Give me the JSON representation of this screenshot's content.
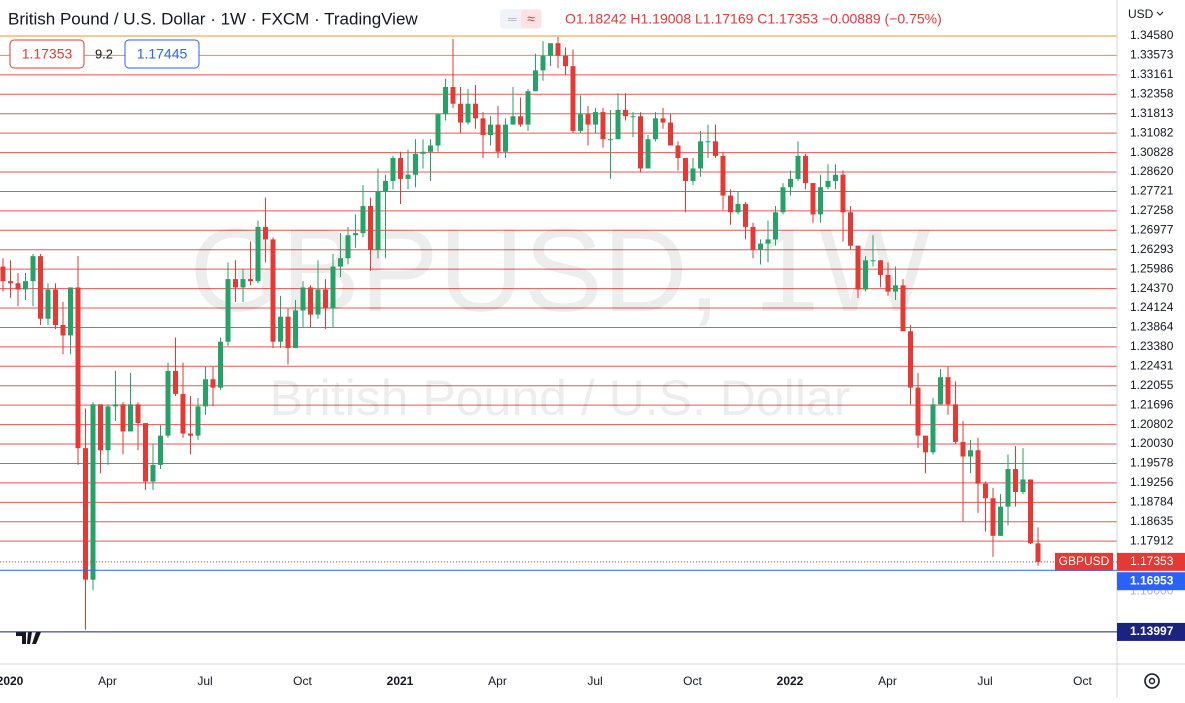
{
  "chart_data": {
    "type": "candlestick",
    "title": "British Pound / U.S. Dollar · 1W · FXCM · TradingView",
    "ohlc_legend": "O1.18242 H1.19008 L1.17169 C1.17353 −0.00889 (−0.75%)",
    "bid": "1.17353",
    "spread": "9.2",
    "ask": "1.17445",
    "currency": "USD",
    "watermark": {
      "symbol": "GBPUSD, 1W",
      "description": "British Pound / U.S. Dollar"
    },
    "symbol_tag": "GBPUSD",
    "up_color": "#26a269",
    "down_color": "#e53935",
    "ylim": [
      1.1246,
      1.4427
    ],
    "current_price": 1.17353,
    "marked_levels": [
      1.16953,
      1.13997
    ],
    "axis_faint_label": "1.16000",
    "level_labels": [
      "1.34580",
      "1.33573",
      "1.33161",
      "1.32358",
      "1.31813",
      "1.31082",
      "1.30828",
      "1.28620",
      "1.27721",
      "1.27258",
      "1.26977",
      "1.26293",
      "1.25986",
      "1.24370",
      "1.24124",
      "1.23864",
      "1.23380",
      "1.22431",
      "1.22055",
      "1.21696",
      "1.20802",
      "1.20030",
      "1.19578",
      "1.19256",
      "1.18784",
      "1.18635",
      "1.17912"
    ],
    "x_labels": [
      "2020",
      "Apr",
      "Jul",
      "Oct",
      "2021",
      "Apr",
      "Jul",
      "Oct",
      "2022",
      "Apr",
      "Jul",
      "Oct"
    ],
    "candles": [
      [
        1.315,
        1.319,
        1.303,
        1.308
      ],
      [
        1.308,
        1.318,
        1.3,
        1.307
      ],
      [
        1.307,
        1.312,
        1.296,
        1.304
      ],
      [
        1.304,
        1.312,
        1.299,
        1.308
      ],
      [
        1.308,
        1.321,
        1.296,
        1.32
      ],
      [
        1.32,
        1.321,
        1.287,
        1.29
      ],
      [
        1.29,
        1.307,
        1.287,
        1.304
      ],
      [
        1.304,
        1.307,
        1.285,
        1.287
      ],
      [
        1.287,
        1.298,
        1.273,
        1.282
      ],
      [
        1.282,
        1.305,
        1.273,
        1.305
      ],
      [
        1.305,
        1.32,
        1.22,
        1.228
      ],
      [
        1.228,
        1.247,
        1.141,
        1.165
      ],
      [
        1.165,
        1.25,
        1.16,
        1.249
      ],
      [
        1.249,
        1.249,
        1.216,
        1.227
      ],
      [
        1.227,
        1.249,
        1.22,
        1.248
      ],
      [
        1.248,
        1.265,
        1.241,
        1.249
      ],
      [
        1.249,
        1.25,
        1.225,
        1.236
      ],
      [
        1.236,
        1.264,
        1.236,
        1.249
      ],
      [
        1.249,
        1.25,
        1.227,
        1.24
      ],
      [
        1.24,
        1.24,
        1.208,
        1.212
      ],
      [
        1.212,
        1.23,
        1.208,
        1.22
      ],
      [
        1.22,
        1.239,
        1.218,
        1.234
      ],
      [
        1.234,
        1.269,
        1.233,
        1.265
      ],
      [
        1.265,
        1.281,
        1.253,
        1.254
      ],
      [
        1.254,
        1.269,
        1.233,
        1.235
      ],
      [
        1.235,
        1.253,
        1.225,
        1.234
      ],
      [
        1.234,
        1.252,
        1.232,
        1.248
      ],
      [
        1.248,
        1.267,
        1.244,
        1.261
      ],
      [
        1.261,
        1.267,
        1.248,
        1.257
      ],
      [
        1.257,
        1.281,
        1.256,
        1.279
      ],
      [
        1.279,
        1.317,
        1.277,
        1.309
      ],
      [
        1.309,
        1.318,
        1.298,
        1.305
      ],
      [
        1.305,
        1.314,
        1.298,
        1.309
      ],
      [
        1.309,
        1.327,
        1.306,
        1.308
      ],
      [
        1.308,
        1.337,
        1.307,
        1.334
      ],
      [
        1.334,
        1.348,
        1.317,
        1.328
      ],
      [
        1.328,
        1.329,
        1.276,
        1.279
      ],
      [
        1.279,
        1.301,
        1.276,
        1.291
      ],
      [
        1.291,
        1.295,
        1.268,
        1.276
      ],
      [
        1.276,
        1.299,
        1.277,
        1.294
      ],
      [
        1.294,
        1.308,
        1.286,
        1.305
      ],
      [
        1.305,
        1.306,
        1.286,
        1.292
      ],
      [
        1.292,
        1.318,
        1.29,
        1.304
      ],
      [
        1.304,
        1.309,
        1.285,
        1.295
      ],
      [
        1.295,
        1.321,
        1.286,
        1.315
      ],
      [
        1.315,
        1.331,
        1.31,
        1.319
      ],
      [
        1.319,
        1.334,
        1.316,
        1.33
      ],
      [
        1.33,
        1.34,
        1.324,
        1.331
      ],
      [
        1.331,
        1.354,
        1.329,
        1.344
      ],
      [
        1.344,
        1.348,
        1.313,
        1.323
      ],
      [
        1.323,
        1.362,
        1.319,
        1.351
      ],
      [
        1.351,
        1.359,
        1.319,
        1.356
      ],
      [
        1.356,
        1.368,
        1.352,
        1.367
      ],
      [
        1.367,
        1.37,
        1.345,
        1.357
      ],
      [
        1.357,
        1.371,
        1.352,
        1.359
      ],
      [
        1.359,
        1.376,
        1.353,
        1.369
      ],
      [
        1.369,
        1.376,
        1.362,
        1.37
      ],
      [
        1.37,
        1.376,
        1.356,
        1.373
      ],
      [
        1.373,
        1.387,
        1.37,
        1.388
      ],
      [
        1.388,
        1.405,
        1.385,
        1.401
      ],
      [
        1.401,
        1.424,
        1.391,
        1.393
      ],
      [
        1.393,
        1.401,
        1.379,
        1.384
      ],
      [
        1.384,
        1.4,
        1.383,
        1.393
      ],
      [
        1.393,
        1.402,
        1.381,
        1.386
      ],
      [
        1.386,
        1.389,
        1.367,
        1.378
      ],
      [
        1.378,
        1.387,
        1.373,
        1.383
      ],
      [
        1.383,
        1.392,
        1.367,
        1.37
      ],
      [
        1.37,
        1.386,
        1.367,
        1.383
      ],
      [
        1.383,
        1.401,
        1.383,
        1.387
      ],
      [
        1.387,
        1.396,
        1.382,
        1.383
      ],
      [
        1.383,
        1.4,
        1.38,
        1.399
      ],
      [
        1.399,
        1.417,
        1.399,
        1.409
      ],
      [
        1.409,
        1.423,
        1.404,
        1.416
      ],
      [
        1.416,
        1.422,
        1.411,
        1.422
      ],
      [
        1.422,
        1.425,
        1.41,
        1.416
      ],
      [
        1.416,
        1.42,
        1.407,
        1.411
      ],
      [
        1.411,
        1.419,
        1.379,
        1.38
      ],
      [
        1.38,
        1.397,
        1.379,
        1.388
      ],
      [
        1.388,
        1.392,
        1.373,
        1.383
      ],
      [
        1.383,
        1.391,
        1.379,
        1.389
      ],
      [
        1.389,
        1.391,
        1.372,
        1.376
      ],
      [
        1.376,
        1.39,
        1.357,
        1.376
      ],
      [
        1.376,
        1.398,
        1.378,
        1.39
      ],
      [
        1.39,
        1.398,
        1.385,
        1.387
      ],
      [
        1.387,
        1.389,
        1.377,
        1.387
      ],
      [
        1.387,
        1.389,
        1.36,
        1.362
      ],
      [
        1.362,
        1.378,
        1.363,
        1.376
      ],
      [
        1.376,
        1.389,
        1.375,
        1.386
      ],
      [
        1.386,
        1.391,
        1.381,
        1.384
      ],
      [
        1.384,
        1.388,
        1.373,
        1.373
      ],
      [
        1.373,
        1.375,
        1.361,
        1.367
      ],
      [
        1.367,
        1.367,
        1.341,
        1.356
      ],
      [
        1.356,
        1.367,
        1.354,
        1.362
      ],
      [
        1.362,
        1.38,
        1.358,
        1.375
      ],
      [
        1.375,
        1.383,
        1.367,
        1.375
      ],
      [
        1.375,
        1.383,
        1.367,
        1.368
      ],
      [
        1.368,
        1.37,
        1.342,
        1.349
      ],
      [
        1.349,
        1.352,
        1.335,
        1.341
      ],
      [
        1.341,
        1.351,
        1.34,
        1.345
      ],
      [
        1.345,
        1.346,
        1.328,
        1.334
      ],
      [
        1.334,
        1.336,
        1.319,
        1.323
      ],
      [
        1.323,
        1.328,
        1.316,
        1.326
      ],
      [
        1.326,
        1.337,
        1.317,
        1.328
      ],
      [
        1.328,
        1.344,
        1.325,
        1.341
      ],
      [
        1.341,
        1.355,
        1.34,
        1.353
      ],
      [
        1.353,
        1.361,
        1.349,
        1.357
      ],
      [
        1.357,
        1.375,
        1.356,
        1.368
      ],
      [
        1.368,
        1.369,
        1.352,
        1.355
      ],
      [
        1.355,
        1.355,
        1.336,
        1.34
      ],
      [
        1.34,
        1.359,
        1.336,
        1.353
      ],
      [
        1.353,
        1.364,
        1.352,
        1.356
      ],
      [
        1.356,
        1.364,
        1.352,
        1.359
      ],
      [
        1.359,
        1.361,
        1.327,
        1.341
      ],
      [
        1.341,
        1.344,
        1.323,
        1.325
      ],
      [
        1.325,
        1.325,
        1.3,
        1.304
      ],
      [
        1.304,
        1.32,
        1.303,
        1.318
      ],
      [
        1.318,
        1.33,
        1.315,
        1.318
      ],
      [
        1.318,
        1.318,
        1.305,
        1.311
      ],
      [
        1.311,
        1.317,
        1.301,
        1.303
      ],
      [
        1.303,
        1.315,
        1.299,
        1.306
      ],
      [
        1.306,
        1.309,
        1.284,
        1.284
      ],
      [
        1.284,
        1.287,
        1.249,
        1.257
      ],
      [
        1.257,
        1.264,
        1.228,
        1.234
      ],
      [
        1.234,
        1.234,
        1.216,
        1.226
      ],
      [
        1.226,
        1.252,
        1.225,
        1.249
      ],
      [
        1.249,
        1.266,
        1.249,
        1.262
      ],
      [
        1.262,
        1.267,
        1.244,
        1.249
      ],
      [
        1.249,
        1.26,
        1.23,
        1.231
      ],
      [
        1.231,
        1.241,
        1.193,
        1.224
      ],
      [
        1.224,
        1.232,
        1.216,
        1.227
      ],
      [
        1.227,
        1.233,
        1.197,
        1.211
      ],
      [
        1.211,
        1.212,
        1.188,
        1.204
      ],
      [
        1.204,
        1.209,
        1.176,
        1.186
      ],
      [
        1.186,
        1.206,
        1.186,
        1.2
      ],
      [
        1.2,
        1.225,
        1.191,
        1.218
      ],
      [
        1.218,
        1.229,
        1.2,
        1.207
      ],
      [
        1.207,
        1.228,
        1.206,
        1.213
      ],
      [
        1.213,
        1.213,
        1.182,
        1.18242
      ],
      [
        1.18242,
        1.19008,
        1.17169,
        1.17353
      ]
    ]
  }
}
